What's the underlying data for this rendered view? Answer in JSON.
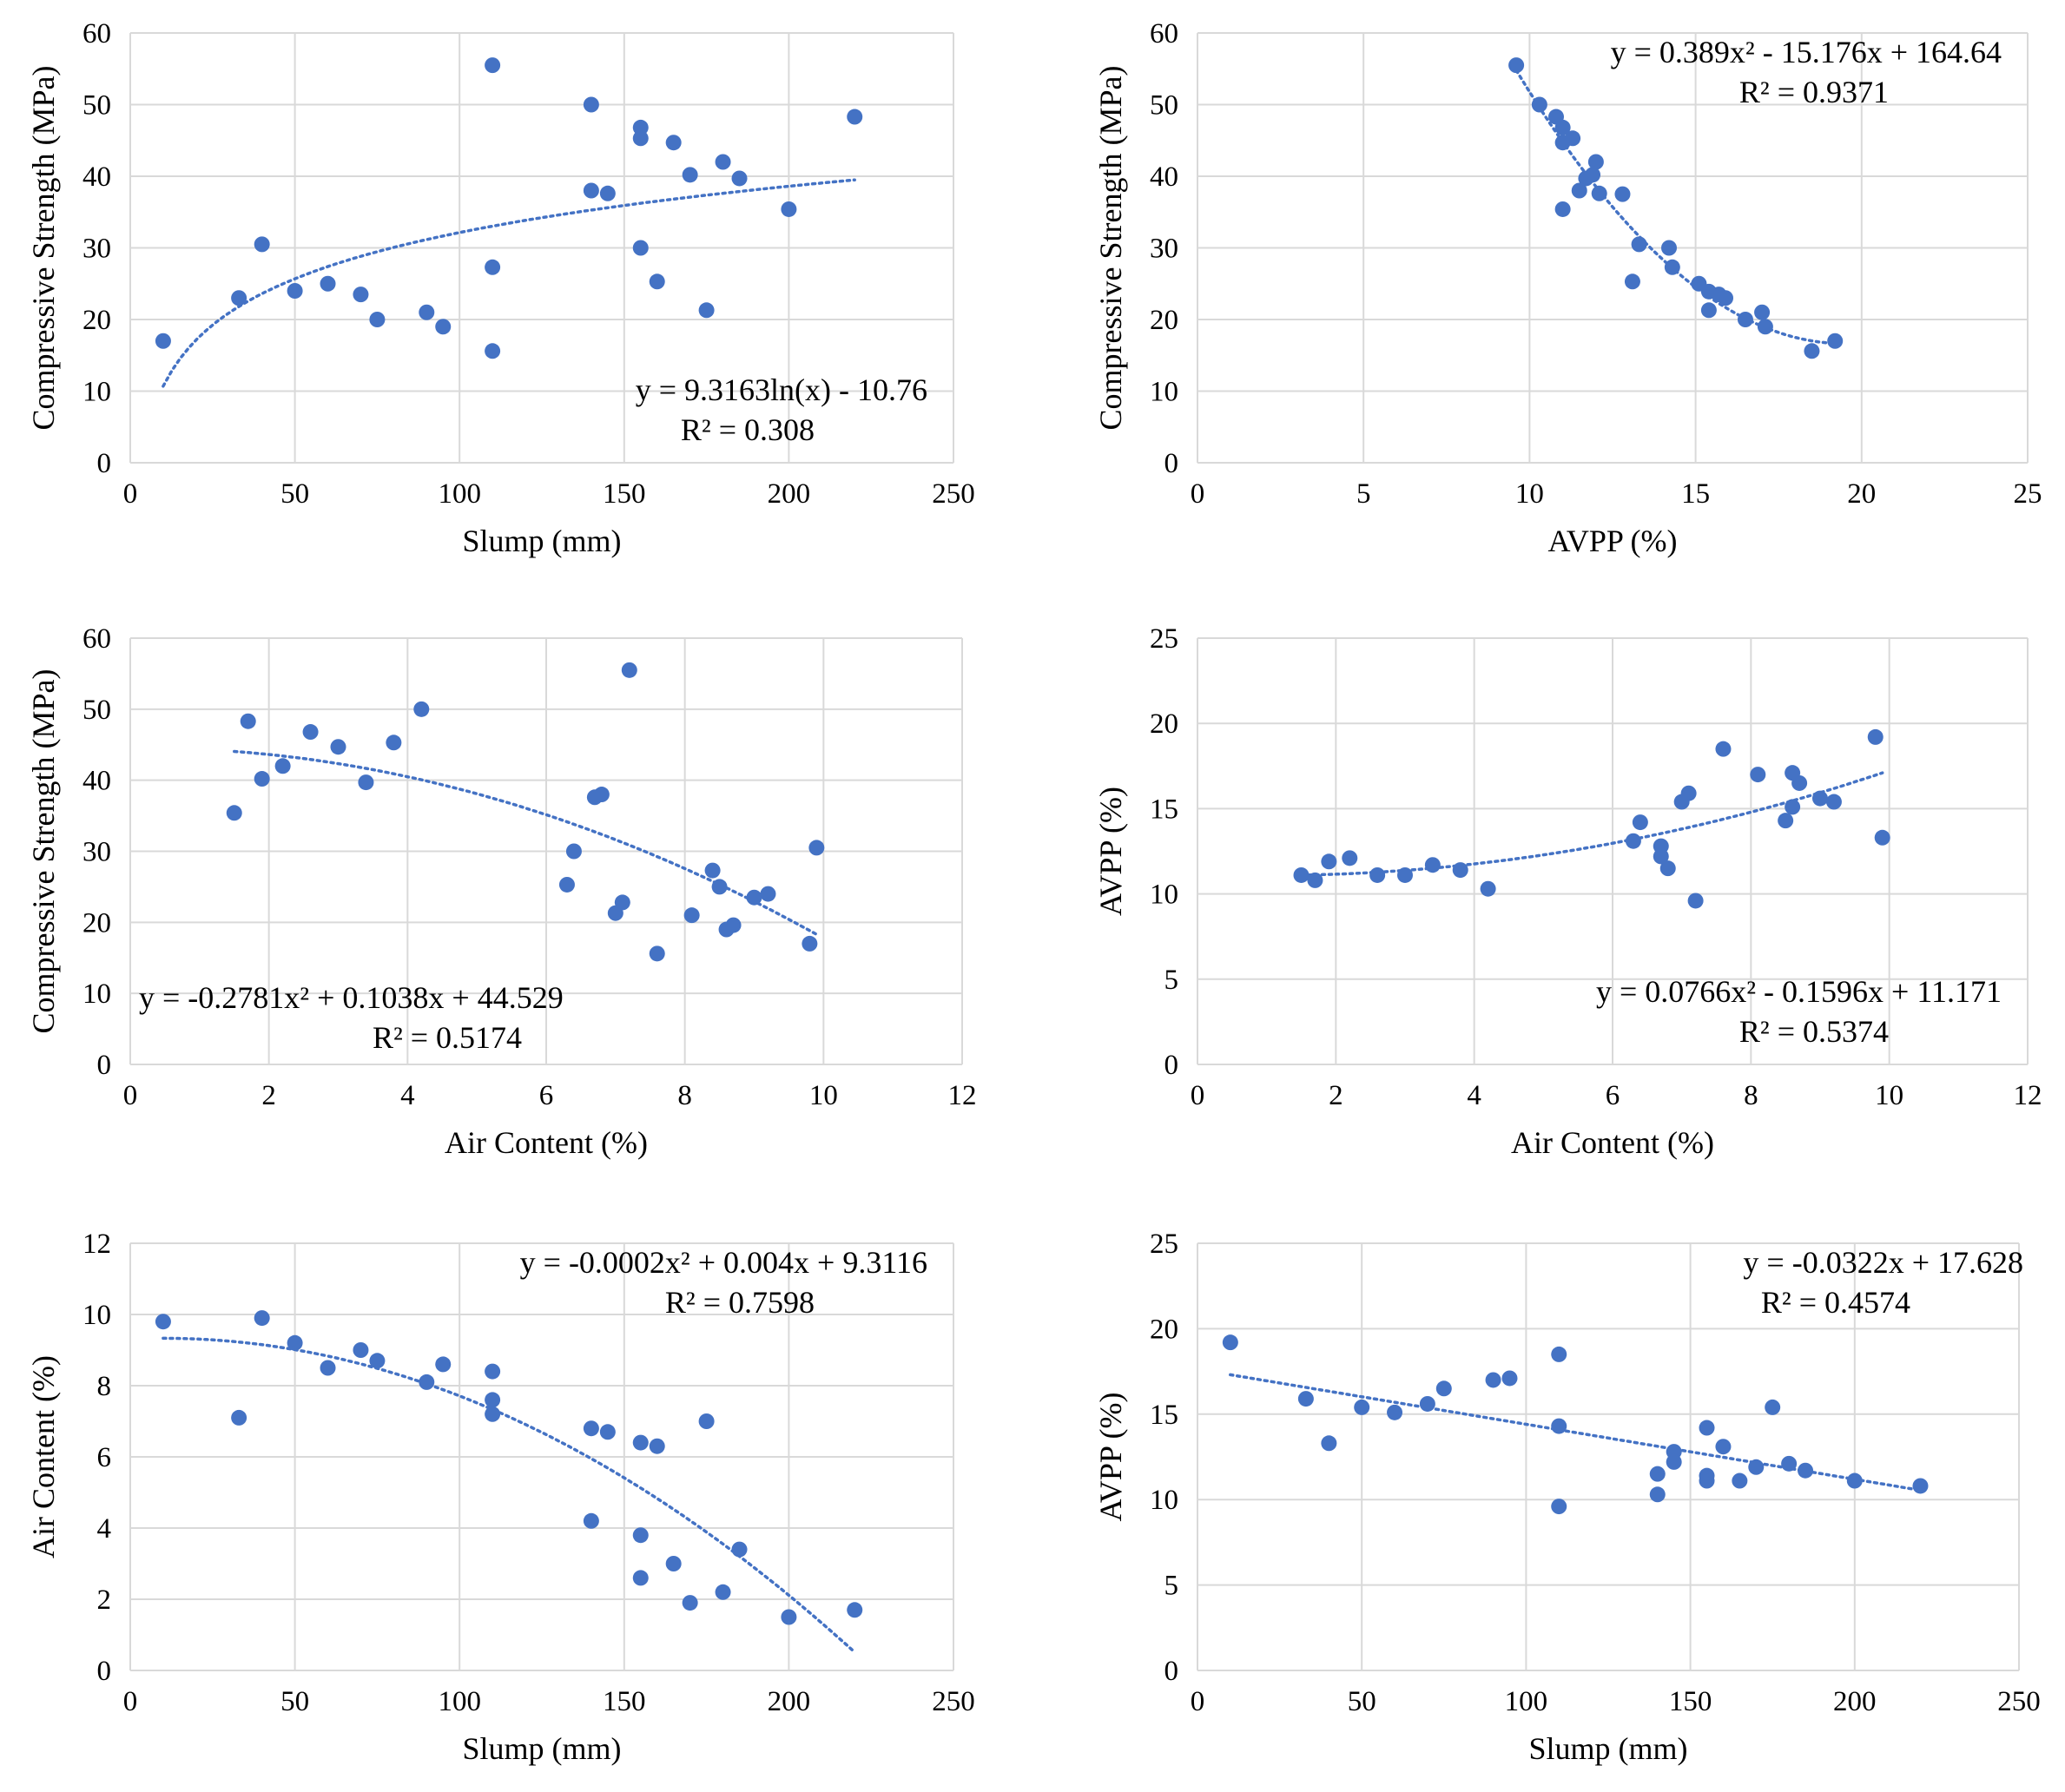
{
  "chart_data": [
    {
      "type": "scatter",
      "xlabel": "Slump (mm)",
      "ylabel": "Compressive Strength (MPa)",
      "xlim": [
        0,
        250
      ],
      "ylim": [
        0,
        60
      ],
      "xticks": [
        "0",
        "50",
        "100",
        "150",
        "200",
        "250"
      ],
      "yticks": [
        "0",
        "10",
        "20",
        "30",
        "40",
        "50",
        "60"
      ],
      "grid": true,
      "point_color": "#4472C4",
      "trendline": {
        "kind": "log",
        "a": 9.3163,
        "b": -10.76,
        "x_range": [
          10,
          220
        ]
      },
      "equation": "y = 9.3163ln(x) - 10.76",
      "r2": "R² = 0.308",
      "equation_position": "bottom-right",
      "points": [
        [
          10,
          17
        ],
        [
          33,
          23
        ],
        [
          40,
          30.5
        ],
        [
          50,
          24
        ],
        [
          60,
          25
        ],
        [
          70,
          23.5
        ],
        [
          75,
          20
        ],
        [
          90,
          21
        ],
        [
          95,
          19
        ],
        [
          110,
          55.5
        ],
        [
          110,
          27.3
        ],
        [
          110,
          15.6
        ],
        [
          140,
          50
        ],
        [
          140,
          38
        ],
        [
          145,
          37.6
        ],
        [
          155,
          46.8
        ],
        [
          155,
          45.3
        ],
        [
          155,
          30
        ],
        [
          160,
          25.3
        ],
        [
          165,
          44.7
        ],
        [
          170,
          40.2
        ],
        [
          175,
          21.3
        ],
        [
          180,
          42
        ],
        [
          185,
          39.7
        ],
        [
          200,
          35.4
        ],
        [
          220,
          48.3
        ]
      ]
    },
    {
      "type": "scatter",
      "xlabel": "AVPP (%)",
      "ylabel": "Compressive Strength (MPa)",
      "xlim": [
        0,
        25
      ],
      "ylim": [
        0,
        60
      ],
      "xticks": [
        "0",
        "5",
        "10",
        "15",
        "20",
        "25"
      ],
      "yticks": [
        "0",
        "10",
        "20",
        "30",
        "40",
        "50",
        "60"
      ],
      "grid": true,
      "point_color": "#4472C4",
      "trendline": {
        "kind": "poly",
        "coef": [
          0.389,
          -15.176,
          164.64
        ],
        "x_range": [
          9.6,
          19.2
        ]
      },
      "equation": "y = 0.389x² - 15.176x + 164.64",
      "r2": "R² = 0.9371",
      "equation_position": "top-right",
      "points": [
        [
          9.6,
          55.5
        ],
        [
          10.3,
          50
        ],
        [
          10.8,
          48.3
        ],
        [
          11.0,
          46.8
        ],
        [
          11.0,
          44.7
        ],
        [
          11.3,
          45.3
        ],
        [
          11.0,
          35.4
        ],
        [
          11.5,
          38
        ],
        [
          11.7,
          39.7
        ],
        [
          11.9,
          40.2
        ],
        [
          12.0,
          42
        ],
        [
          12.1,
          37.6
        ],
        [
          12.8,
          37.5
        ],
        [
          13.3,
          30.5
        ],
        [
          14.2,
          30
        ],
        [
          13.1,
          25.3
        ],
        [
          14.3,
          27.3
        ],
        [
          15.1,
          25
        ],
        [
          15.4,
          23.9
        ],
        [
          15.7,
          23.5
        ],
        [
          15.9,
          23
        ],
        [
          15.4,
          21.3
        ],
        [
          16.5,
          20
        ],
        [
          17.0,
          21
        ],
        [
          17.1,
          19
        ],
        [
          18.5,
          15.6
        ],
        [
          19.2,
          17
        ]
      ]
    },
    {
      "type": "scatter",
      "xlabel": "Air Content (%)",
      "ylabel": "Compressive Strength (MPa)",
      "xlim": [
        0,
        12
      ],
      "ylim": [
        0,
        60
      ],
      "xticks": [
        "0",
        "2",
        "4",
        "6",
        "8",
        "10",
        "12"
      ],
      "yticks": [
        "0",
        "10",
        "20",
        "30",
        "40",
        "50",
        "60"
      ],
      "grid": true,
      "point_color": "#4472C4",
      "trendline": {
        "kind": "poly",
        "coef": [
          -0.2781,
          0.1038,
          44.529
        ],
        "x_range": [
          1.5,
          9.9
        ]
      },
      "equation": "y = -0.2781x² + 0.1038x + 44.529",
      "r2": "R² = 0.5174",
      "equation_position": "bottom-left",
      "points": [
        [
          1.5,
          35.4
        ],
        [
          1.7,
          48.3
        ],
        [
          1.9,
          40.2
        ],
        [
          2.2,
          42
        ],
        [
          2.6,
          46.8
        ],
        [
          3.0,
          44.7
        ],
        [
          3.4,
          39.7
        ],
        [
          3.8,
          45.3
        ],
        [
          4.2,
          50
        ],
        [
          6.3,
          25.3
        ],
        [
          6.4,
          30
        ],
        [
          6.7,
          37.6
        ],
        [
          6.8,
          38
        ],
        [
          7.0,
          21.3
        ],
        [
          7.1,
          22.8
        ],
        [
          7.2,
          55.5
        ],
        [
          7.6,
          15.6
        ],
        [
          8.1,
          21
        ],
        [
          8.4,
          27.3
        ],
        [
          8.5,
          25
        ],
        [
          8.6,
          19
        ],
        [
          8.7,
          19.6
        ],
        [
          9.0,
          23.5
        ],
        [
          9.2,
          24
        ],
        [
          9.8,
          17
        ],
        [
          9.9,
          30.5
        ]
      ]
    },
    {
      "type": "scatter",
      "xlabel": "Air Content (%)",
      "ylabel": "AVPP (%)",
      "xlim": [
        0,
        12
      ],
      "ylim": [
        0,
        25
      ],
      "xticks": [
        "0",
        "2",
        "4",
        "6",
        "8",
        "10",
        "12"
      ],
      "yticks": [
        "0",
        "5",
        "10",
        "15",
        "20",
        "25"
      ],
      "grid": true,
      "point_color": "#4472C4",
      "trendline": {
        "kind": "poly",
        "coef": [
          0.0766,
          -0.1596,
          11.171
        ],
        "x_range": [
          1.5,
          9.9
        ]
      },
      "equation": "y = 0.0766x² - 0.1596x + 11.171",
      "r2": "R² = 0.5374",
      "equation_position": "bottom-right",
      "points": [
        [
          1.5,
          11.1
        ],
        [
          1.7,
          10.8
        ],
        [
          1.9,
          11.9
        ],
        [
          2.2,
          12.1
        ],
        [
          2.6,
          11.1
        ],
        [
          3.0,
          11.1
        ],
        [
          3.4,
          11.7
        ],
        [
          3.8,
          11.4
        ],
        [
          4.2,
          10.3
        ],
        [
          6.3,
          13.1
        ],
        [
          6.4,
          14.2
        ],
        [
          6.7,
          12.8
        ],
        [
          6.7,
          12.2
        ],
        [
          6.8,
          11.5
        ],
        [
          7.0,
          15.4
        ],
        [
          7.1,
          15.9
        ],
        [
          7.2,
          9.6
        ],
        [
          7.6,
          18.5
        ],
        [
          8.1,
          17
        ],
        [
          8.5,
          14.3
        ],
        [
          8.6,
          15.1
        ],
        [
          8.6,
          17.1
        ],
        [
          8.7,
          16.5
        ],
        [
          9.0,
          15.6
        ],
        [
          9.2,
          15.4
        ],
        [
          9.8,
          19.2
        ],
        [
          9.9,
          13.3
        ]
      ]
    },
    {
      "type": "scatter",
      "xlabel": "Slump (mm)",
      "ylabel": "Air Content (%)",
      "xlim": [
        0,
        250
      ],
      "ylim": [
        0,
        12
      ],
      "xticks": [
        "0",
        "50",
        "100",
        "150",
        "200",
        "250"
      ],
      "yticks": [
        "0",
        "2",
        "4",
        "6",
        "8",
        "10",
        "12"
      ],
      "grid": true,
      "point_color": "#4472C4",
      "trendline": {
        "kind": "poly",
        "coef": [
          -0.0002,
          0.004,
          9.3116
        ],
        "x_range": [
          10,
          220
        ]
      },
      "equation": "y = -0.0002x² + 0.004x + 9.3116",
      "r2": "R² = 0.7598",
      "equation_position": "top-right",
      "points": [
        [
          10,
          9.8
        ],
        [
          33,
          7.1
        ],
        [
          40,
          9.9
        ],
        [
          50,
          9.2
        ],
        [
          60,
          8.5
        ],
        [
          70,
          9.0
        ],
        [
          75,
          8.7
        ],
        [
          90,
          8.1
        ],
        [
          95,
          8.6
        ],
        [
          110,
          8.4
        ],
        [
          110,
          7.6
        ],
        [
          110,
          7.2
        ],
        [
          140,
          6.8
        ],
        [
          140,
          4.2
        ],
        [
          145,
          6.7
        ],
        [
          155,
          6.4
        ],
        [
          155,
          3.8
        ],
        [
          155,
          2.6
        ],
        [
          160,
          6.3
        ],
        [
          165,
          3.0
        ],
        [
          170,
          1.9
        ],
        [
          175,
          7.0
        ],
        [
          180,
          2.2
        ],
        [
          185,
          3.4
        ],
        [
          200,
          1.5
        ],
        [
          220,
          1.7
        ]
      ]
    },
    {
      "type": "scatter",
      "xlabel": "Slump (mm)",
      "ylabel": "AVPP (%)",
      "xlim": [
        0,
        250
      ],
      "ylim": [
        0,
        25
      ],
      "xticks": [
        "0",
        "50",
        "100",
        "150",
        "200",
        "250"
      ],
      "yticks": [
        "0",
        "5",
        "10",
        "15",
        "20",
        "25"
      ],
      "grid": true,
      "point_color": "#4472C4",
      "trendline": {
        "kind": "poly",
        "coef": [
          0,
          -0.0322,
          17.628
        ],
        "x_range": [
          10,
          220
        ]
      },
      "equation": "y = -0.0322x + 17.628",
      "r2": "R² = 0.4574",
      "equation_position": "top-right",
      "points": [
        [
          10,
          19.2
        ],
        [
          33,
          15.9
        ],
        [
          40,
          13.3
        ],
        [
          50,
          15.4
        ],
        [
          60,
          15.1
        ],
        [
          70,
          15.6
        ],
        [
          75,
          16.5
        ],
        [
          90,
          17
        ],
        [
          95,
          17.1
        ],
        [
          110,
          18.5
        ],
        [
          110,
          14.3
        ],
        [
          110,
          9.6
        ],
        [
          140,
          11.5
        ],
        [
          140,
          10.3
        ],
        [
          145,
          12.8
        ],
        [
          145,
          12.2
        ],
        [
          155,
          14.2
        ],
        [
          155,
          11.4
        ],
        [
          155,
          11.1
        ],
        [
          160,
          13.1
        ],
        [
          165,
          11.1
        ],
        [
          170,
          11.9
        ],
        [
          175,
          15.4
        ],
        [
          180,
          12.1
        ],
        [
          185,
          11.7
        ],
        [
          200,
          11.1
        ],
        [
          220,
          10.8
        ]
      ]
    }
  ]
}
